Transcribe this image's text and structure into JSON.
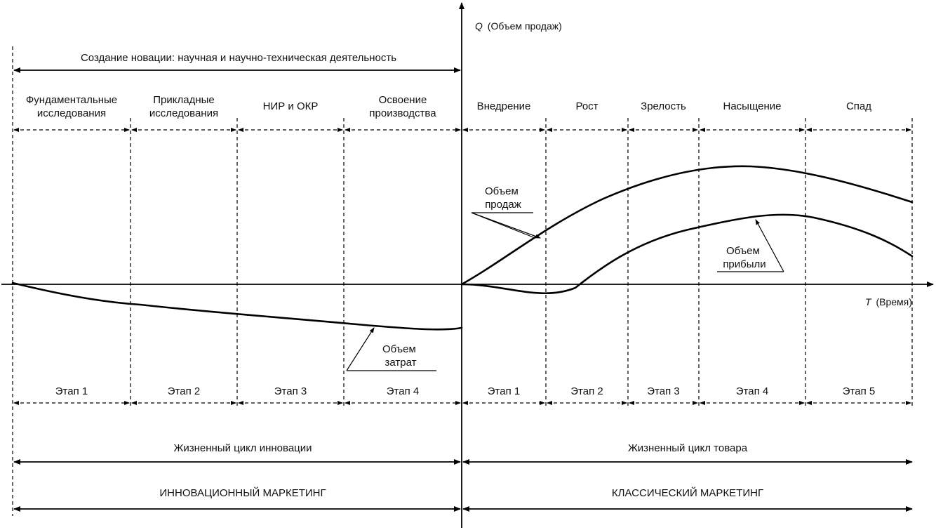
{
  "axes": {
    "y_symbol": "Q",
    "y_label": "(Объем продаж)",
    "x_symbol": "T",
    "x_label": "(Время)"
  },
  "top_span": "Создание новации: научная и научно-техническая деятельность",
  "phases": [
    {
      "line1": "Фундаментальные",
      "line2": "исследования"
    },
    {
      "line1": "Прикладные",
      "line2": "исследования"
    },
    {
      "line1": "НИР и ОКР",
      "line2": ""
    },
    {
      "line1": "Освоение",
      "line2": "производства"
    },
    {
      "line1": "Внедрение",
      "line2": ""
    },
    {
      "line1": "Рост",
      "line2": ""
    },
    {
      "line1": "Зрелость",
      "line2": ""
    },
    {
      "line1": "Насыщение",
      "line2": ""
    },
    {
      "line1": "Спад",
      "line2": ""
    }
  ],
  "stages": [
    "Этап 1",
    "Этап 2",
    "Этап 3",
    "Этап 4",
    "Этап 1",
    "Этап 2",
    "Этап 3",
    "Этап 4",
    "Этап 5"
  ],
  "curve_labels": {
    "sales": {
      "line1": "Объем",
      "line2": "продаж"
    },
    "profit": {
      "line1": "Объем",
      "line2": "прибыли"
    },
    "costs": {
      "line1": "Объем",
      "line2": "затрат"
    }
  },
  "cycles": {
    "innovation": "Жизненный цикл инновации",
    "product": "Жизненный цикл товара"
  },
  "marketing": {
    "innovation": "ИННОВАЦИОННЫЙ МАРКЕТИНГ",
    "classic": "КЛАССИЧЕСКИЙ МАРКЕТИНГ"
  }
}
